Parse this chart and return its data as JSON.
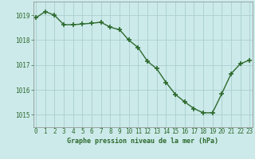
{
  "x": [
    0,
    1,
    2,
    3,
    4,
    5,
    6,
    7,
    8,
    9,
    10,
    11,
    12,
    13,
    14,
    15,
    16,
    17,
    18,
    19,
    20,
    21,
    22,
    23
  ],
  "y": [
    1018.9,
    1019.15,
    1019.0,
    1018.62,
    1018.62,
    1018.65,
    1018.68,
    1018.72,
    1018.52,
    1018.42,
    1018.0,
    1017.7,
    1017.15,
    1016.85,
    1016.3,
    1015.82,
    1015.52,
    1015.25,
    1015.08,
    1015.08,
    1015.85,
    1016.65,
    1017.05,
    1017.2
  ],
  "line_color": "#2d6a2d",
  "marker": "+",
  "marker_color": "#2d6a2d",
  "marker_size": 5,
  "marker_linewidth": 1.2,
  "bg_color": "#cceaea",
  "grid_color": "#aacece",
  "tick_label_color": "#2d6a2d",
  "xlabel": "Graphe pression niveau de la mer (hPa)",
  "xlim": [
    -0.3,
    23.3
  ],
  "ylim": [
    1014.5,
    1019.55
  ],
  "yticks": [
    1015,
    1016,
    1017,
    1018,
    1019
  ],
  "xticks": [
    0,
    1,
    2,
    3,
    4,
    5,
    6,
    7,
    8,
    9,
    10,
    11,
    12,
    13,
    14,
    15,
    16,
    17,
    18,
    19,
    20,
    21,
    22,
    23
  ],
  "axis_fontsize": 6.5,
  "tick_fontsize": 5.5,
  "xlabel_fontsize": 6.0,
  "line_width": 1.0
}
